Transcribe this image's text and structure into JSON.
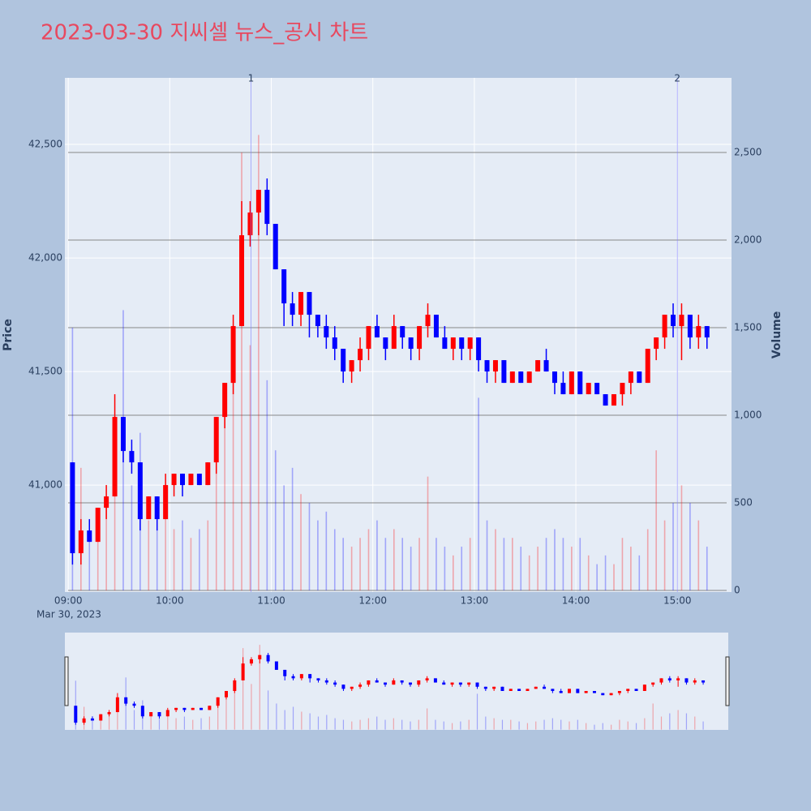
{
  "chart_data": {
    "type": "candlestick",
    "title": "2023-03-30 지씨셀 뉴스_공시 차트",
    "y_title": "Price",
    "y2_title": "Volume",
    "x_date_label": "Mar 30, 2023",
    "increasing_color": "#ff0000",
    "decreasing_color": "#0000ff",
    "x": [
      "09:00",
      "09:05",
      "09:10",
      "09:15",
      "09:20",
      "09:25",
      "09:30",
      "09:35",
      "09:40",
      "09:45",
      "09:50",
      "09:55",
      "10:00",
      "10:05",
      "10:10",
      "10:15",
      "10:20",
      "10:25",
      "10:30",
      "10:35",
      "10:40",
      "10:45",
      "10:50",
      "10:55",
      "11:00",
      "11:05",
      "11:10",
      "11:15",
      "11:20",
      "11:25",
      "11:30",
      "11:35",
      "11:40",
      "11:45",
      "11:50",
      "11:55",
      "12:00",
      "12:05",
      "12:10",
      "12:15",
      "12:20",
      "12:25",
      "12:30",
      "12:35",
      "12:40",
      "12:45",
      "12:50",
      "12:55",
      "13:00",
      "13:05",
      "13:10",
      "13:15",
      "13:20",
      "13:25",
      "13:30",
      "13:35",
      "13:40",
      "13:45",
      "13:50",
      "13:55",
      "14:00",
      "14:05",
      "14:10",
      "14:15",
      "14:20",
      "14:25",
      "14:30",
      "14:35",
      "14:40",
      "14:45",
      "14:50",
      "14:55",
      "15:00",
      "15:05",
      "15:10",
      "15:15"
    ],
    "open": [
      41100,
      40700,
      40800,
      40750,
      40900,
      40950,
      41300,
      41150,
      41100,
      40850,
      40950,
      40850,
      41000,
      41050,
      41000,
      41050,
      41000,
      41100,
      41300,
      41450,
      41700,
      42100,
      42200,
      42300,
      42150,
      41950,
      41800,
      41750,
      41850,
      41750,
      41700,
      41650,
      41600,
      41500,
      41550,
      41600,
      41700,
      41650,
      41600,
      41700,
      41650,
      41600,
      41700,
      41750,
      41650,
      41600,
      41650,
      41600,
      41650,
      41550,
      41500,
      41550,
      41450,
      41500,
      41450,
      41500,
      41550,
      41500,
      41450,
      41400,
      41500,
      41400,
      41450,
      41400,
      41350,
      41400,
      41450,
      41500,
      41450,
      41600,
      41650,
      41750,
      41700,
      41750,
      41650,
      41700
    ],
    "high": [
      41100,
      40850,
      40850,
      40900,
      41000,
      41400,
      41300,
      41200,
      41100,
      40950,
      40950,
      41050,
      41050,
      41050,
      41050,
      41050,
      41100,
      41300,
      41450,
      41750,
      42250,
      42250,
      42300,
      42350,
      42150,
      41950,
      41850,
      41850,
      41850,
      41750,
      41750,
      41700,
      41600,
      41550,
      41650,
      41700,
      41750,
      41650,
      41750,
      41700,
      41650,
      41700,
      41800,
      41750,
      41700,
      41650,
      41650,
      41650,
      41650,
      41550,
      41550,
      41550,
      41500,
      41500,
      41500,
      41550,
      41600,
      41500,
      41500,
      41500,
      41500,
      41450,
      41450,
      41400,
      41400,
      41450,
      41500,
      41500,
      41600,
      41650,
      41750,
      41800,
      41800,
      41750,
      41750,
      41700
    ],
    "low": [
      40650,
      40650,
      40750,
      40750,
      40850,
      40950,
      41100,
      41050,
      40800,
      40850,
      40800,
      40850,
      40950,
      40950,
      41000,
      41000,
      41000,
      41050,
      41250,
      41400,
      41700,
      42050,
      42100,
      42100,
      41950,
      41700,
      41700,
      41700,
      41650,
      41650,
      41600,
      41550,
      41450,
      41450,
      41500,
      41550,
      41650,
      41550,
      41600,
      41600,
      41550,
      41550,
      41650,
      41650,
      41600,
      41550,
      41550,
      41550,
      41500,
      41450,
      41450,
      41450,
      41450,
      41450,
      41450,
      41500,
      41500,
      41400,
      41400,
      41400,
      41400,
      41400,
      41400,
      41350,
      41350,
      41350,
      41400,
      41450,
      41450,
      41550,
      41600,
      41650,
      41550,
      41600,
      41600,
      41600
    ],
    "close": [
      40700,
      40800,
      40750,
      40900,
      40950,
      41300,
      41150,
      41100,
      40850,
      40950,
      40850,
      41000,
      41050,
      41000,
      41050,
      41000,
      41100,
      41300,
      41450,
      41700,
      42100,
      42200,
      42300,
      42150,
      41950,
      41800,
      41750,
      41850,
      41750,
      41700,
      41650,
      41600,
      41500,
      41550,
      41600,
      41700,
      41650,
      41600,
      41700,
      41650,
      41600,
      41700,
      41750,
      41650,
      41600,
      41650,
      41600,
      41650,
      41550,
      41500,
      41550,
      41450,
      41500,
      41450,
      41500,
      41550,
      41500,
      41450,
      41400,
      41500,
      41400,
      41450,
      41400,
      41350,
      41400,
      41450,
      41500,
      41450,
      41600,
      41650,
      41750,
      41700,
      41750,
      41650,
      41700,
      41650
    ],
    "volume": [
      1500,
      700,
      300,
      400,
      500,
      700,
      1600,
      600,
      900,
      400,
      350,
      600,
      350,
      400,
      300,
      350,
      400,
      800,
      1000,
      1300,
      2500,
      1400,
      2600,
      1200,
      800,
      600,
      700,
      550,
      500,
      400,
      450,
      350,
      300,
      250,
      300,
      350,
      400,
      300,
      350,
      300,
      250,
      300,
      650,
      300,
      250,
      200,
      250,
      300,
      1100,
      400,
      350,
      300,
      300,
      250,
      200,
      250,
      300,
      350,
      300,
      250,
      300,
      200,
      150,
      200,
      150,
      300,
      250,
      200,
      350,
      800,
      400,
      500,
      600,
      500,
      400,
      250
    ],
    "xlim": [
      "08:58",
      "15:32"
    ],
    "xticks": [
      "09:00",
      "10:00",
      "11:00",
      "12:00",
      "13:00",
      "14:00",
      "15:00"
    ],
    "ylim": [
      40529,
      42793
    ],
    "yticks": [
      {
        "value": 41000,
        "label": "41,000"
      },
      {
        "value": 41500,
        "label": "41,500"
      },
      {
        "value": 42000,
        "label": "42,000"
      },
      {
        "value": 42500,
        "label": "42,500"
      }
    ],
    "y2lim": [
      -9,
      2926
    ],
    "y2ticks": [
      0,
      500,
      {
        "value": 1000,
        "label": "1,000"
      },
      {
        "value": 1500,
        "label": "1,500"
      },
      {
        "value": 2000,
        "label": "2,000"
      },
      {
        "value": 2500,
        "label": "2,500"
      }
    ],
    "markers": [
      {
        "x": "10:48",
        "label": "1"
      },
      {
        "x": "15:00",
        "label": "2"
      }
    ],
    "grid": true,
    "rangeslider": true
  }
}
